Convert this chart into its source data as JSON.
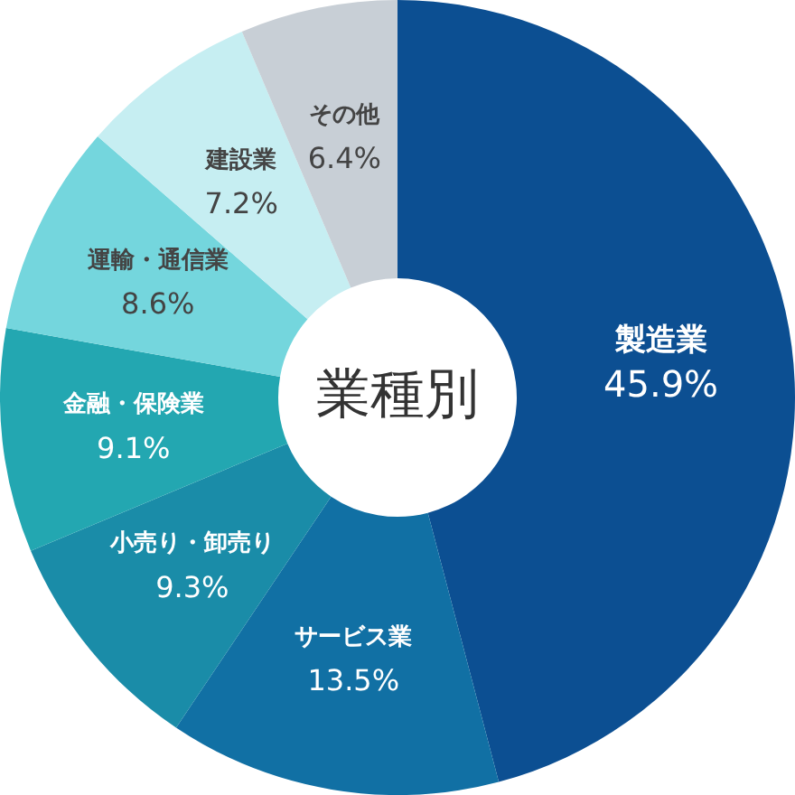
{
  "chart_data": {
    "type": "donut",
    "title": "業種別",
    "categories": [
      "製造業",
      "サービス業",
      "小売り・卸売り",
      "金融・保険業",
      "運輸・通信業",
      "建設業",
      "その他"
    ],
    "values": [
      45.9,
      13.5,
      9.3,
      9.1,
      8.6,
      7.2,
      6.4
    ],
    "value_labels": [
      "45.9%",
      "13.5%",
      "9.3%",
      "9.1%",
      "8.6%",
      "7.2%",
      "6.4%"
    ],
    "colors": [
      "#0c4f92",
      "#1170a4",
      "#1a8ca8",
      "#23a7b1",
      "#74d6dd",
      "#c6eef2",
      "#c8cfd6"
    ],
    "legend": false
  }
}
